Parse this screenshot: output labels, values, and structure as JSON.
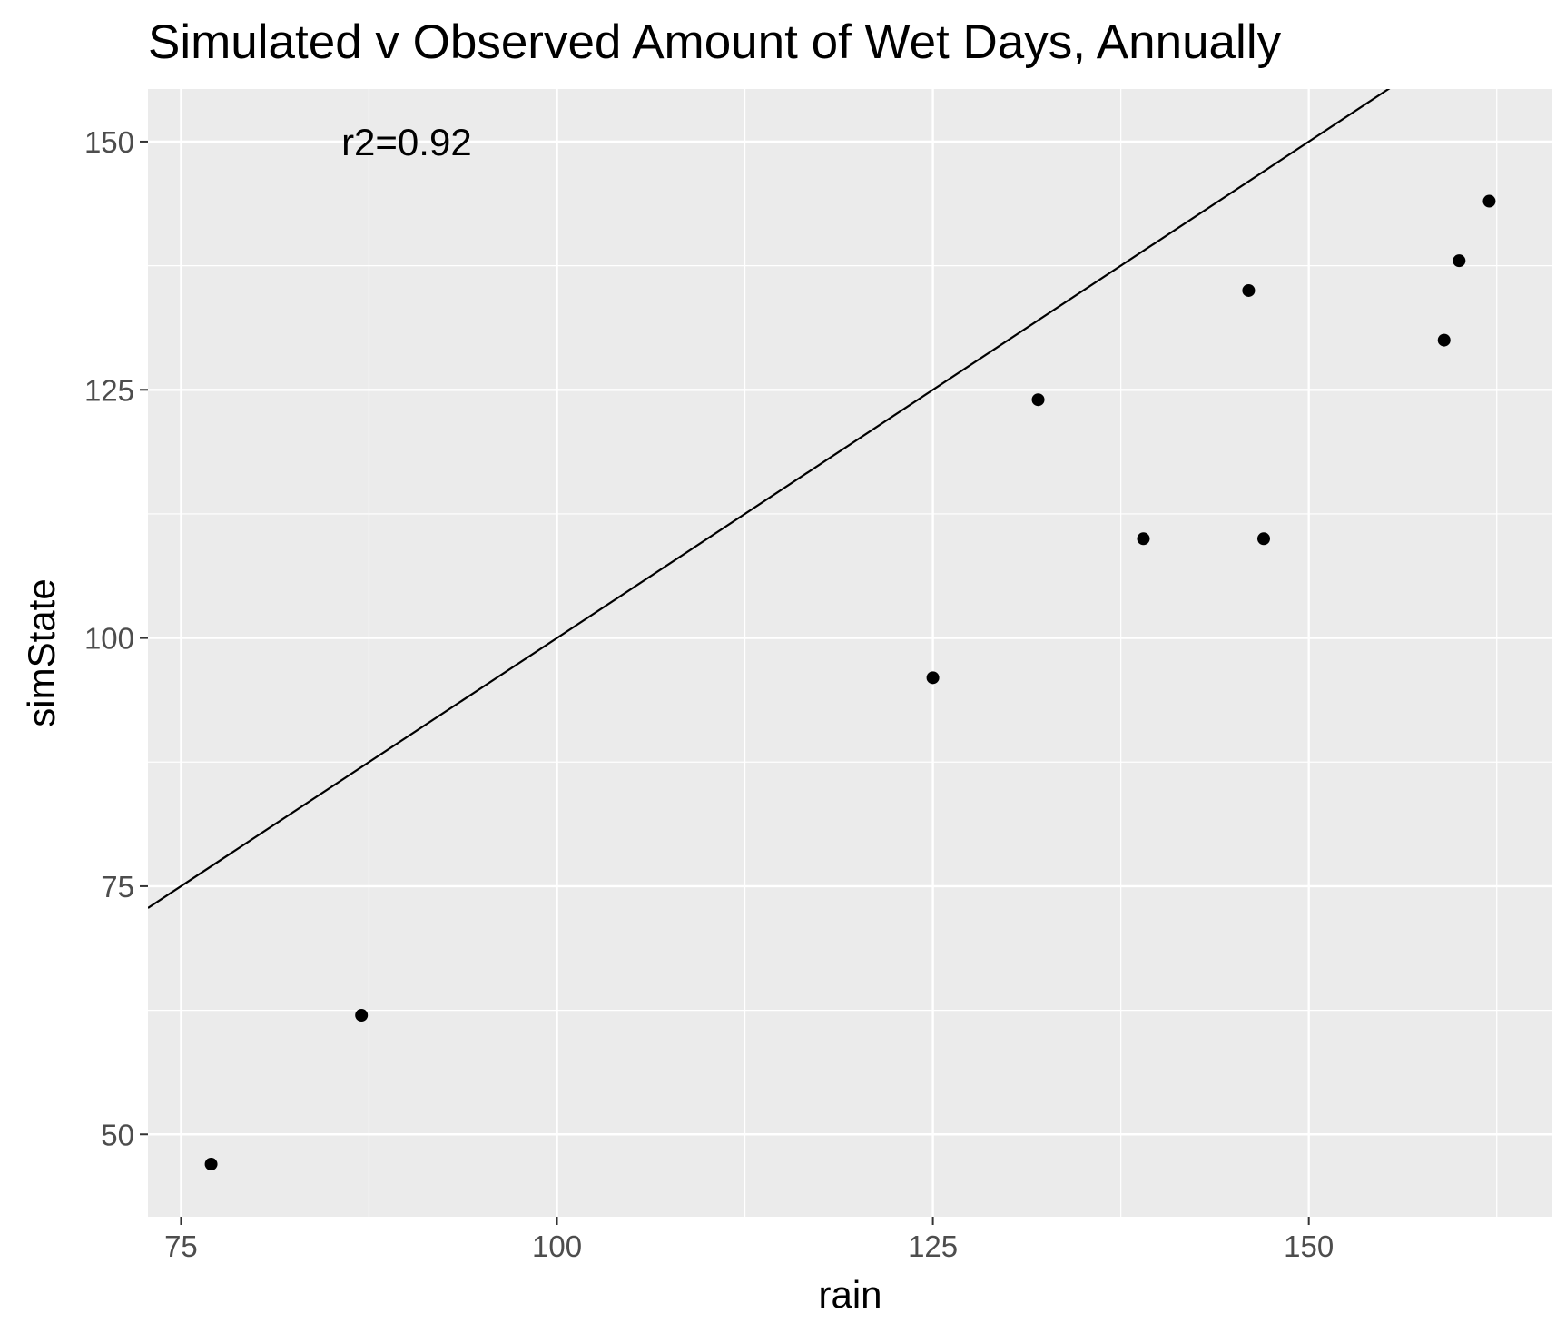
{
  "chart_data": {
    "type": "scatter",
    "title": "Simulated v Observed Amount of Wet Days, Annually",
    "xlabel": "rain",
    "ylabel": "simState",
    "xlim": [
      72.8,
      166.2
    ],
    "ylim": [
      41.7,
      155.3
    ],
    "x_ticks": [
      75,
      100,
      125,
      150
    ],
    "y_ticks": [
      50,
      75,
      100,
      125,
      150
    ],
    "x_minor": [
      87.5,
      112.5,
      137.5,
      162.5
    ],
    "y_minor": [
      62.5,
      87.5,
      112.5,
      137.5
    ],
    "grid": true,
    "points": [
      {
        "x": 77,
        "y": 47
      },
      {
        "x": 87,
        "y": 62
      },
      {
        "x": 125,
        "y": 96
      },
      {
        "x": 132,
        "y": 124
      },
      {
        "x": 139,
        "y": 110
      },
      {
        "x": 146,
        "y": 135
      },
      {
        "x": 147,
        "y": 110
      },
      {
        "x": 159,
        "y": 130
      },
      {
        "x": 160,
        "y": 138
      },
      {
        "x": 162,
        "y": 144
      }
    ],
    "reference_line": {
      "slope": 1,
      "intercept": 0
    },
    "annotation": {
      "text": "r2=0.92",
      "x": 90,
      "y": 150
    },
    "colors": {
      "panel": "#ebebeb",
      "grid": "#ffffff",
      "points": "#000000",
      "line": "#000000",
      "ticks": "#4d4d4d"
    }
  }
}
